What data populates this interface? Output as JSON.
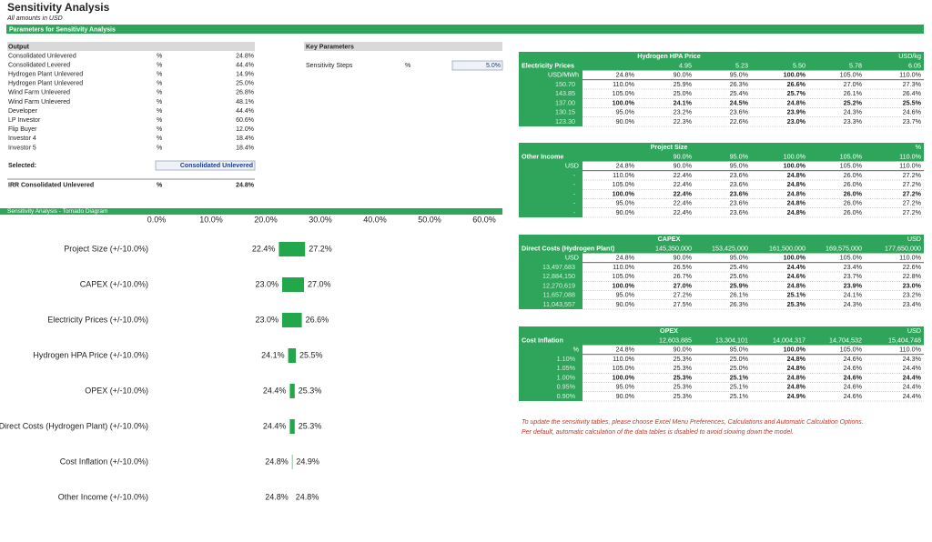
{
  "header": {
    "title": "Sensitivity Analysis",
    "subtitle": "All amounts in USD",
    "band": "Parameters for Sensitivity Analysis"
  },
  "output": {
    "heading": "Output",
    "rows": [
      {
        "label": "Consolidated Unlevered",
        "unit": "%",
        "value": "24.8%"
      },
      {
        "label": "Consolidated Levered",
        "unit": "%",
        "value": "44.4%"
      },
      {
        "label": "Hydrogen Plant Unlevered",
        "unit": "%",
        "value": "14.9%"
      },
      {
        "label": "Hydrogen Plant Unlevered",
        "unit": "%",
        "value": "25.0%"
      },
      {
        "label": "Wind Farm Unlevered",
        "unit": "%",
        "value": "26.8%"
      },
      {
        "label": "Wind Farm Unlevered",
        "unit": "%",
        "value": "48.1%"
      },
      {
        "label": "Developer",
        "unit": "%",
        "value": "44.4%"
      },
      {
        "label": "LP Investor",
        "unit": "%",
        "value": "60.6%"
      },
      {
        "label": "Flip Buyer",
        "unit": "%",
        "value": "12.0%"
      },
      {
        "label": "Investor 4",
        "unit": "%",
        "value": "18.4%"
      },
      {
        "label": "Investor 5",
        "unit": "%",
        "value": "18.4%"
      }
    ],
    "selected_label": "Selected:",
    "selected_value": "Consolidated Unlevered",
    "irr": {
      "label": "IRR Consolidated Unlevered",
      "unit": "%",
      "value": "24.8%"
    }
  },
  "key_parameters": {
    "heading": "Key Parameters",
    "rows": [
      {
        "label": "Sensitivity Steps",
        "unit": "%",
        "value": "5.0%"
      }
    ]
  },
  "sensitivity_tables": [
    {
      "title": "Hydrogen HPA Price",
      "unit": "USD/kg",
      "row_heading": "Electricity Prices",
      "columns": [
        "4.95",
        "5.23",
        "5.50",
        "5.78",
        "6.05"
      ],
      "corner_label": "USD/MWh",
      "corner_value": "24.8%",
      "column_steps": [
        "90.0%",
        "95.0%",
        "100.0%",
        "105.0%",
        "110.0%"
      ],
      "rows": [
        {
          "label": "150.70",
          "step": "110.0%",
          "values": [
            "25.9%",
            "26.3%",
            "26.6%",
            "27.0%",
            "27.3%"
          ]
        },
        {
          "label": "143.85",
          "step": "105.0%",
          "values": [
            "25.0%",
            "25.4%",
            "25.7%",
            "26.1%",
            "26.4%"
          ]
        },
        {
          "label": "137.00",
          "step": "100.0%",
          "values": [
            "24.1%",
            "24.5%",
            "24.8%",
            "25.2%",
            "25.5%"
          ]
        },
        {
          "label": "130.15",
          "step": "95.0%",
          "values": [
            "23.2%",
            "23.6%",
            "23.9%",
            "24.3%",
            "24.6%"
          ]
        },
        {
          "label": "123.30",
          "step": "90.0%",
          "values": [
            "22.3%",
            "22.6%",
            "23.0%",
            "23.3%",
            "23.7%"
          ]
        }
      ]
    },
    {
      "title": "Project Size",
      "unit": "%",
      "row_heading": "Other Income",
      "columns": [
        "90.0%",
        "95.0%",
        "100.0%",
        "105.0%",
        "110.0%"
      ],
      "corner_label": "USD",
      "corner_value": "24.8%",
      "column_steps": [
        "90.0%",
        "95.0%",
        "100.0%",
        "105.0%",
        "110.0%"
      ],
      "rows": [
        {
          "label": "-",
          "step": "110.0%",
          "values": [
            "22.4%",
            "23.6%",
            "24.8%",
            "26.0%",
            "27.2%"
          ]
        },
        {
          "label": "-",
          "step": "105.0%",
          "values": [
            "22.4%",
            "23.6%",
            "24.8%",
            "26.0%",
            "27.2%"
          ]
        },
        {
          "label": "-",
          "step": "100.0%",
          "values": [
            "22.4%",
            "23.6%",
            "24.8%",
            "26.0%",
            "27.2%"
          ]
        },
        {
          "label": "-",
          "step": "95.0%",
          "values": [
            "22.4%",
            "23.6%",
            "24.8%",
            "26.0%",
            "27.2%"
          ]
        },
        {
          "label": "-",
          "step": "90.0%",
          "values": [
            "22.4%",
            "23.6%",
            "24.8%",
            "26.0%",
            "27.2%"
          ]
        }
      ]
    },
    {
      "title": "CAPEX",
      "unit": "USD",
      "row_heading": "Direct Costs  (Hydrogen Plant)",
      "columns": [
        "145,350,000",
        "153,425,000",
        "161,500,000",
        "169,575,000",
        "177,650,000"
      ],
      "corner_label": "USD",
      "corner_value": "24.8%",
      "column_steps": [
        "90.0%",
        "95.0%",
        "100.0%",
        "105.0%",
        "110.0%"
      ],
      "rows": [
        {
          "label": "13,497,683",
          "step": "110.0%",
          "values": [
            "26.5%",
            "25.4%",
            "24.4%",
            "23.4%",
            "22.6%"
          ]
        },
        {
          "label": "12,884,150",
          "step": "105.0%",
          "values": [
            "26.7%",
            "25.6%",
            "24.6%",
            "23.7%",
            "22.8%"
          ]
        },
        {
          "label": "12,270,619",
          "step": "100.0%",
          "values": [
            "27.0%",
            "25.9%",
            "24.8%",
            "23.9%",
            "23.0%"
          ]
        },
        {
          "label": "11,657,088",
          "step": "95.0%",
          "values": [
            "27.2%",
            "26.1%",
            "25.1%",
            "24.1%",
            "23.2%"
          ]
        },
        {
          "label": "11,043,557",
          "step": "90.0%",
          "values": [
            "27.5%",
            "26.3%",
            "25.3%",
            "24.3%",
            "23.4%"
          ]
        }
      ]
    },
    {
      "title": "OPEX",
      "unit": "USD",
      "row_heading": "Cost Inflation",
      "columns": [
        "12,603,885",
        "13,304,101",
        "14,004,317",
        "14,704,532",
        "15,404,748"
      ],
      "corner_label": "%",
      "corner_value": "24.8%",
      "column_steps": [
        "90.0%",
        "95.0%",
        "100.0%",
        "105.0%",
        "110.0%"
      ],
      "rows": [
        {
          "label": "1.10%",
          "step": "110.0%",
          "values": [
            "25.3%",
            "25.0%",
            "24.8%",
            "24.6%",
            "24.3%"
          ]
        },
        {
          "label": "1.05%",
          "step": "105.0%",
          "values": [
            "25.3%",
            "25.0%",
            "24.8%",
            "24.6%",
            "24.4%"
          ]
        },
        {
          "label": "1.00%",
          "step": "100.0%",
          "values": [
            "25.3%",
            "25.1%",
            "24.8%",
            "24.6%",
            "24.4%"
          ]
        },
        {
          "label": "0.95%",
          "step": "95.0%",
          "values": [
            "25.3%",
            "25.1%",
            "24.8%",
            "24.6%",
            "24.4%"
          ]
        },
        {
          "label": "0.90%",
          "step": "90.0%",
          "values": [
            "25.3%",
            "25.1%",
            "24.9%",
            "24.6%",
            "24.4%"
          ]
        }
      ]
    }
  ],
  "note": [
    "To update the sensitivity tables, please choose Excel Menu Preferences, Calculations and Automatic Calculation Options.",
    "Per default, automatic calculation of the data tables is disabled to avoid slowing down the model."
  ],
  "chart_data": {
    "type": "tornado",
    "title": "Sensitivity Analysis - Tornado Diagram",
    "categories": [
      "Project Size (+/-10.0%)",
      "CAPEX (+/-10.0%)",
      "Electricity Prices (+/-10.0%)",
      "Hydrogen HPA Price (+/-10.0%)",
      "OPEX (+/-10.0%)",
      "Direct Costs  (Hydrogen Plant) (+/-10.0%)",
      "Cost Inflation (+/-10.0%)",
      "Other Income (+/-10.0%)"
    ],
    "low_values": [
      22.4,
      23.0,
      23.0,
      24.1,
      24.4,
      24.4,
      24.8,
      24.8
    ],
    "low_value_labels": [
      "22.4%",
      "23.0%",
      "23.0%",
      "24.1%",
      "24.4%",
      "24.4%",
      "24.8%",
      "24.8%"
    ],
    "high_values": [
      27.2,
      27.0,
      26.6,
      25.5,
      25.3,
      25.3,
      24.9,
      24.8
    ],
    "high_value_labels": [
      "27.2%",
      "27.0%",
      "26.6%",
      "25.5%",
      "25.3%",
      "25.3%",
      "24.9%",
      "24.8%"
    ],
    "xlim": [
      0,
      60
    ],
    "xticks": [
      {
        "value": 0,
        "label": "0.0%"
      },
      {
        "value": 10,
        "label": "10.0%"
      },
      {
        "value": 20,
        "label": "20.0%"
      },
      {
        "value": 30,
        "label": "30.0%"
      },
      {
        "value": 40,
        "label": "40.0%"
      },
      {
        "value": 50,
        "label": "50.0%"
      },
      {
        "value": 60,
        "label": "60.0%"
      }
    ],
    "color": "#22a84a"
  }
}
